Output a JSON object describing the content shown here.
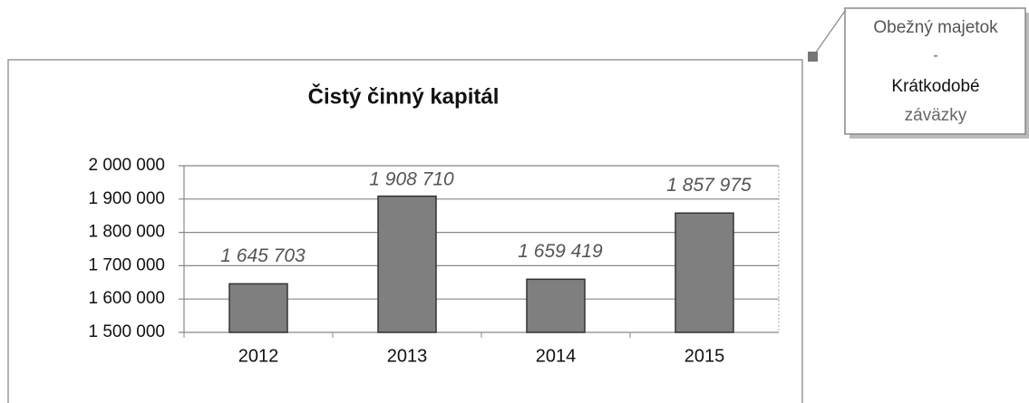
{
  "chart_data": {
    "type": "bar",
    "title": "Čistý činný kapitál",
    "categories": [
      "2012",
      "2013",
      "2014",
      "2015"
    ],
    "values": [
      1645703,
      1908710,
      1659419,
      1857975
    ],
    "value_labels": [
      "1 645 703",
      "1 908 710",
      "1 659 419",
      "1 857 975"
    ],
    "color": "#7f7f7f",
    "ylim": [
      1500000,
      2000000
    ],
    "yticks": [
      {
        "value": 1500000,
        "label": "1 500 000"
      },
      {
        "value": 1600000,
        "label": "1 600 000"
      },
      {
        "value": 1700000,
        "label": "1 700 000"
      },
      {
        "value": 1800000,
        "label": "1 800 000"
      },
      {
        "value": 1900000,
        "label": "1 900 000"
      },
      {
        "value": 2000000,
        "label": "2 000 000"
      }
    ],
    "grid": true,
    "annotation": [
      "Obežný majetok",
      "-",
      "Krátkodobé",
      "záväzky"
    ]
  }
}
